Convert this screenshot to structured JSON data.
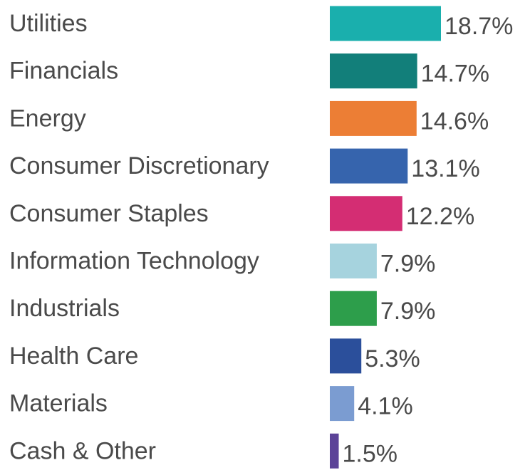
{
  "chart_data": {
    "type": "bar",
    "orientation": "horizontal",
    "categories": [
      "Utilities",
      "Financials",
      "Energy",
      "Consumer Discretionary",
      "Consumer Staples",
      "Information Technology",
      "Industrials",
      "Health Care",
      "Materials",
      "Cash & Other"
    ],
    "values": [
      18.7,
      14.7,
      14.6,
      13.1,
      12.2,
      7.9,
      7.9,
      5.3,
      4.1,
      1.5
    ],
    "value_labels": [
      "18.7%",
      "14.7%",
      "14.6%",
      "13.1%",
      "12.2%",
      "7.9%",
      "7.9%",
      "5.3%",
      "4.1%",
      "1.5%"
    ],
    "colors": [
      "#1aafad",
      "#127f7a",
      "#ec7e35",
      "#3664ad",
      "#d42d73",
      "#a6d3de",
      "#2d9e4b",
      "#2b4f9b",
      "#7b9cd1",
      "#5c4398"
    ],
    "unit": "%",
    "grid": false,
    "legend": "none"
  }
}
